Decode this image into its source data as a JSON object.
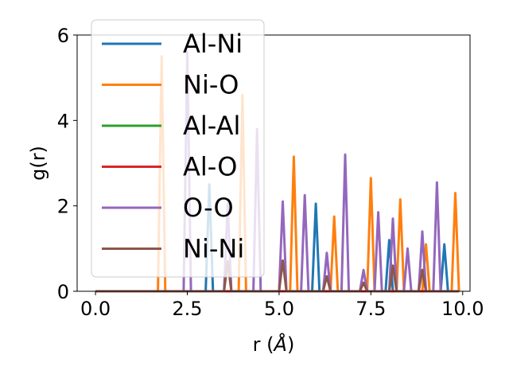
{
  "chart_data": {
    "type": "line",
    "title": "",
    "xlabel": "r (",
    "xlabel_unit": "Å",
    "xlabel_close": ")",
    "ylabel": "g(r)",
    "xlim": [
      -0.5,
      10.2
    ],
    "ylim": [
      0,
      6
    ],
    "xticks": [
      0.0,
      2.5,
      5.0,
      7.5,
      10.0
    ],
    "xtick_labels": [
      "0.0",
      "2.5",
      "5.0",
      "7.5",
      "10.0"
    ],
    "yticks": [
      0,
      2,
      4,
      6
    ],
    "ytick_labels": [
      "0",
      "2",
      "4",
      "6"
    ],
    "grid": false,
    "legend_position": "upper-left",
    "series": [
      {
        "name": "Al-Ni",
        "color": "#1f77b4",
        "x": [
          0.0,
          3.0,
          3.1,
          3.2,
          5.9,
          6.0,
          6.1,
          7.9,
          8.0,
          8.1,
          9.4,
          9.5,
          9.6,
          9.9
        ],
        "y": [
          0,
          0,
          2.5,
          0,
          0,
          2.05,
          0,
          0,
          1.2,
          0,
          0,
          1.1,
          0,
          0
        ]
      },
      {
        "name": "Ni-O",
        "color": "#ff7f0e",
        "x": [
          0.0,
          1.7,
          1.8,
          1.9,
          3.9,
          4.0,
          4.1,
          5.3,
          5.4,
          5.5,
          6.4,
          6.5,
          6.6,
          7.4,
          7.5,
          7.6,
          8.2,
          8.3,
          8.4,
          8.9,
          9.0,
          9.1,
          9.7,
          9.8,
          9.9
        ],
        "y": [
          0,
          0,
          5.5,
          0,
          0,
          4.6,
          0,
          0,
          3.15,
          0,
          0,
          1.75,
          0,
          0,
          2.65,
          0,
          0,
          2.15,
          0,
          0,
          1.1,
          0,
          0,
          2.3,
          0
        ]
      },
      {
        "name": "Al-Al",
        "color": "#2ca02c",
        "x": [
          0.0,
          9.9
        ],
        "y": [
          0,
          0
        ]
      },
      {
        "name": "Al-O",
        "color": "#d62728",
        "x": [
          0.0,
          9.9
        ],
        "y": [
          0,
          0
        ]
      },
      {
        "name": "O-O",
        "color": "#9467bd",
        "x": [
          0.0,
          2.4,
          2.5,
          2.6,
          3.5,
          3.6,
          3.7,
          4.3,
          4.4,
          4.5,
          5.0,
          5.1,
          5.2,
          5.6,
          5.7,
          5.8,
          6.2,
          6.3,
          6.4,
          6.7,
          6.8,
          6.9,
          7.2,
          7.3,
          7.4,
          7.6,
          7.7,
          7.8,
          8.0,
          8.1,
          8.2,
          8.4,
          8.5,
          8.6,
          8.8,
          8.9,
          9.0,
          9.2,
          9.3,
          9.4,
          9.9
        ],
        "y": [
          0,
          0,
          5.6,
          0,
          0,
          2.05,
          0,
          0,
          3.8,
          0,
          0,
          2.1,
          0,
          0,
          2.25,
          0,
          0,
          0.9,
          0,
          0,
          3.2,
          0,
          0,
          0.5,
          0,
          0,
          1.85,
          0,
          0,
          1.7,
          0,
          0,
          1.0,
          0,
          0,
          1.4,
          0,
          0,
          2.55,
          0,
          0
        ]
      },
      {
        "name": "Ni-Ni",
        "color": "#8c564b",
        "x": [
          0.0,
          3.5,
          3.6,
          3.7,
          5.0,
          5.1,
          5.2,
          6.2,
          6.3,
          6.4,
          7.2,
          7.3,
          7.4,
          8.0,
          8.1,
          8.2,
          8.8,
          8.9,
          9.0,
          9.9
        ],
        "y": [
          0,
          0,
          0.7,
          0,
          0,
          0.72,
          0,
          0,
          0.35,
          0,
          0,
          0.2,
          0,
          0,
          0.6,
          0,
          0,
          0.5,
          0,
          0
        ]
      }
    ]
  }
}
